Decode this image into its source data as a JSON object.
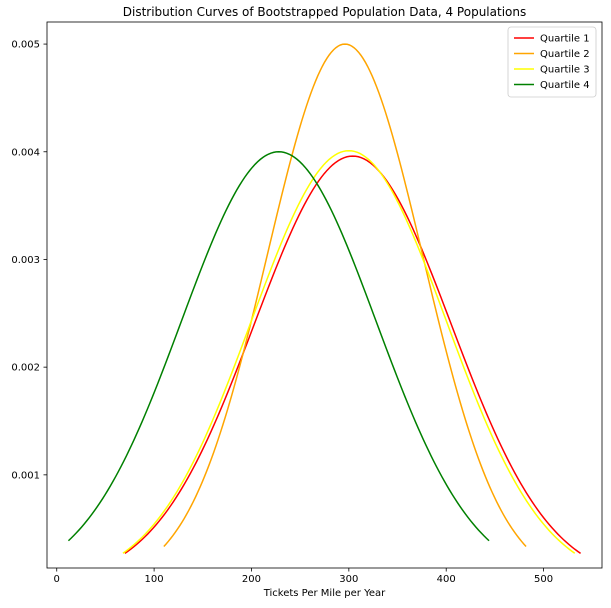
{
  "chart_data": {
    "type": "line",
    "title": "Distribution Curves of Bootstrapped Population Data, 4 Populations",
    "xlabel": "Tickets Per Mile per Year",
    "ylabel": "",
    "xlim": [
      -10,
      560
    ],
    "ylim": [
      0.000135,
      0.005205
    ],
    "xticks": [
      0,
      100,
      200,
      300,
      400,
      500
    ],
    "xtick_labels": [
      "0",
      "100",
      "200",
      "300",
      "400",
      "500"
    ],
    "yticks": [
      0.001,
      0.002,
      0.003,
      0.004,
      0.005
    ],
    "ytick_labels": [
      "0.001",
      "0.002",
      "0.003",
      "0.004",
      "0.005"
    ],
    "grid": false,
    "legend_position": "top-right",
    "series": [
      {
        "name": "Quartile 1",
        "color": "#ff0000",
        "distribution": "normal",
        "mean": 304,
        "sd": 101,
        "x_range": [
          70,
          538
        ],
        "peak_y": 0.00396
      },
      {
        "name": "Quartile 2",
        "color": "#ffa500",
        "distribution": "normal",
        "mean": 296,
        "sd": 80,
        "x_range": [
          110,
          482
        ],
        "peak_y": 0.005
      },
      {
        "name": "Quartile 3",
        "color": "#ffff00",
        "distribution": "normal",
        "mean": 300,
        "sd": 100,
        "x_range": [
          68,
          532
        ],
        "peak_y": 0.00401
      },
      {
        "name": "Quartile 4",
        "color": "#008000",
        "distribution": "normal",
        "mean": 228,
        "sd": 100,
        "x_range": [
          12,
          444
        ],
        "peak_y": 0.004
      }
    ]
  }
}
